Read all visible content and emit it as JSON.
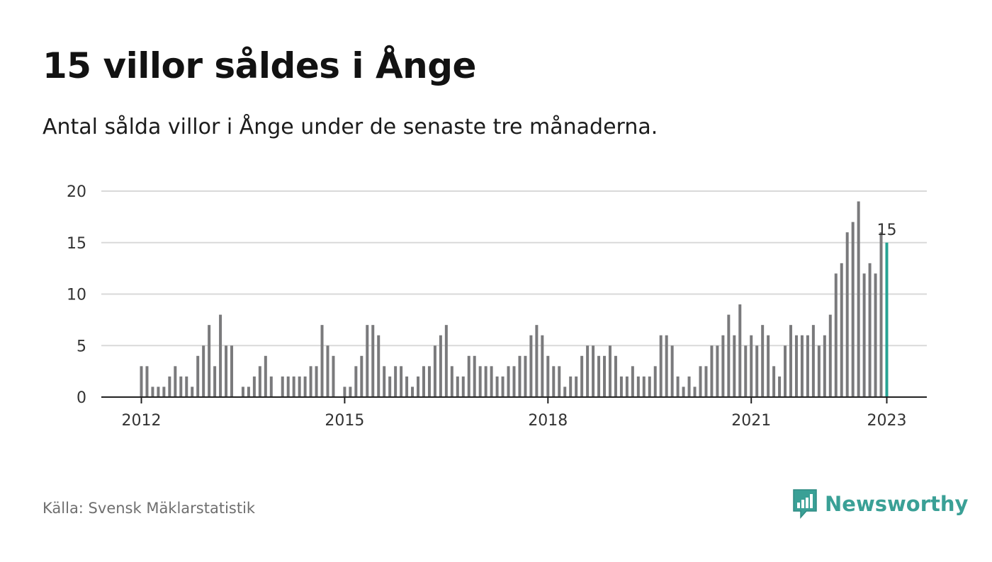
{
  "header": {
    "title": "15 villor såldes i Ånge",
    "subtitle": "Antal sålda villor i Ånge under de senaste tre månaderna."
  },
  "footer": {
    "source": "Källa: Svensk Mäklarstatistik",
    "brand": "Newsworthy",
    "brand_icon": "bar-chart-speech-bubble-icon"
  },
  "colors": {
    "bar": "#7a7a7c",
    "highlight": "#26a293",
    "grid": "#d9d9d9",
    "axis": "#222222",
    "brand": "#3aa096"
  },
  "chart_data": {
    "type": "bar",
    "title": "15 villor såldes i Ånge",
    "subtitle": "Antal sålda villor i Ånge under de senaste tre månaderna.",
    "xlabel": "",
    "ylabel": "",
    "x_start": "2012-01",
    "x_end": "2023-01",
    "x_ticks": [
      "2012",
      "2015",
      "2018",
      "2021",
      "2023"
    ],
    "x_tick_months": [
      "2012-01",
      "2015-01",
      "2018-01",
      "2021-01",
      "2023-01"
    ],
    "y_ticks": [
      0,
      5,
      10,
      15,
      20
    ],
    "ylim": [
      0,
      20
    ],
    "grid": true,
    "legend": "none",
    "values": [
      3,
      3,
      1,
      1,
      1,
      2,
      3,
      2,
      2,
      1,
      4,
      5,
      7,
      3,
      8,
      5,
      5,
      0,
      1,
      1,
      2,
      3,
      4,
      2,
      0,
      2,
      2,
      2,
      2,
      2,
      3,
      3,
      7,
      5,
      4,
      0,
      1,
      1,
      3,
      4,
      7,
      7,
      6,
      3,
      2,
      3,
      3,
      2,
      1,
      2,
      3,
      3,
      5,
      6,
      7,
      3,
      2,
      2,
      4,
      4,
      3,
      3,
      3,
      2,
      2,
      3,
      3,
      4,
      4,
      6,
      7,
      6,
      4,
      3,
      3,
      1,
      2,
      2,
      4,
      5,
      5,
      4,
      4,
      5,
      4,
      2,
      2,
      3,
      2,
      2,
      2,
      3,
      6,
      6,
      5,
      2,
      1,
      2,
      1,
      3,
      3,
      5,
      5,
      6,
      8,
      6,
      9,
      5,
      6,
      5,
      7,
      6,
      3,
      2,
      5,
      7,
      6,
      6,
      6,
      7,
      5,
      6,
      8,
      12,
      13,
      16,
      17,
      19,
      12,
      13,
      12,
      16,
      15
    ],
    "highlight": {
      "x": "2023-01",
      "value": 15,
      "label": "15"
    }
  }
}
